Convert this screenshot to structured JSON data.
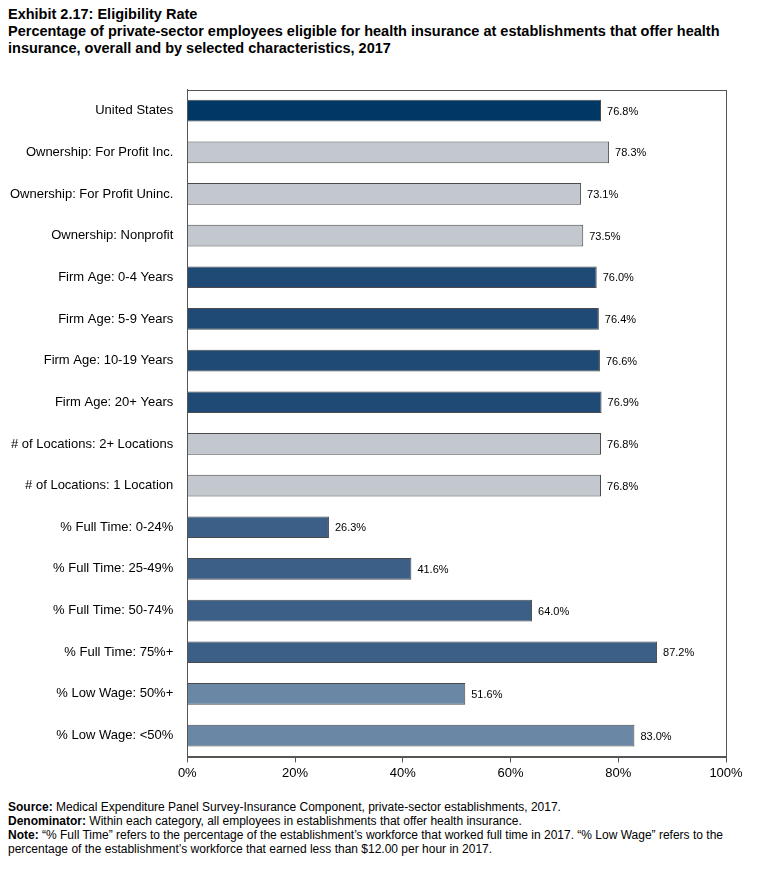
{
  "chart_data": {
    "type": "bar",
    "orientation": "horizontal",
    "title": "Exhibit 2.17: Eligibility Rate",
    "subtitle": "Percentage of private-sector employees eligible for health insurance at establishments that offer health insurance, overall and by selected characteristics, 2017",
    "categories": [
      "United States",
      "Ownership: For Profit Inc.",
      "Ownership: For Profit Uninc.",
      "Ownership: Nonprofit",
      "Firm Age: 0-4 Years",
      "Firm Age: 5-9 Years",
      "Firm Age: 10-19 Years",
      "Firm Age: 20+ Years",
      "# of Locations: 2+ Locations",
      "# of Locations: 1 Location",
      "% Full Time: 0-24%",
      "% Full Time: 25-49%",
      "% Full Time: 50-74%",
      "% Full Time: 75%+",
      "% Low Wage: 50%+",
      "% Low Wage: <50%"
    ],
    "values": [
      76.8,
      78.3,
      73.1,
      73.5,
      76.0,
      76.4,
      76.6,
      76.9,
      76.8,
      76.8,
      26.3,
      41.6,
      64.0,
      87.2,
      51.6,
      83.0
    ],
    "value_labels": [
      "76.8%",
      "78.3%",
      "73.1%",
      "73.5%",
      "76.0%",
      "76.4%",
      "76.6%",
      "76.9%",
      "76.8%",
      "76.8%",
      "26.3%",
      "41.6%",
      "64.0%",
      "87.2%",
      "51.6%",
      "83.0%"
    ],
    "colors": [
      "#003865",
      "#c2c8ce",
      "#c2c8ce",
      "#c2c8ce",
      "#1f4a75",
      "#1f4a75",
      "#1f4a75",
      "#1f4a75",
      "#c2c8ce",
      "#c2c8ce",
      "#3b5f87",
      "#3b5f87",
      "#3b5f87",
      "#3b5f87",
      "#6a88a6",
      "#6a88a6"
    ],
    "xlim": [
      0,
      100
    ],
    "xticks": [
      {
        "value": 0,
        "label": "0%"
      },
      {
        "value": 20,
        "label": "20%"
      },
      {
        "value": 40,
        "label": "40%"
      },
      {
        "value": 60,
        "label": "60%"
      },
      {
        "value": 80,
        "label": "80%"
      },
      {
        "value": 100,
        "label": "100%"
      }
    ],
    "grid": false,
    "data_labels": true,
    "annotations": [
      {
        "label": "Source:",
        "text": "Medical Expenditure Panel Survey-Insurance Component, private-sector establishments, 2017."
      },
      {
        "label": "Denominator:",
        "text": "Within each category, all employees in establishments that offer health insurance."
      },
      {
        "label": "Note:",
        "text": "“% Full Time” refers to the percentage of the establishment’s workforce that worked full time in 2017. “% Low Wage” refers to the percentage of the establishment’s workforce that earned less than $12.00 per hour in 2017."
      }
    ]
  }
}
